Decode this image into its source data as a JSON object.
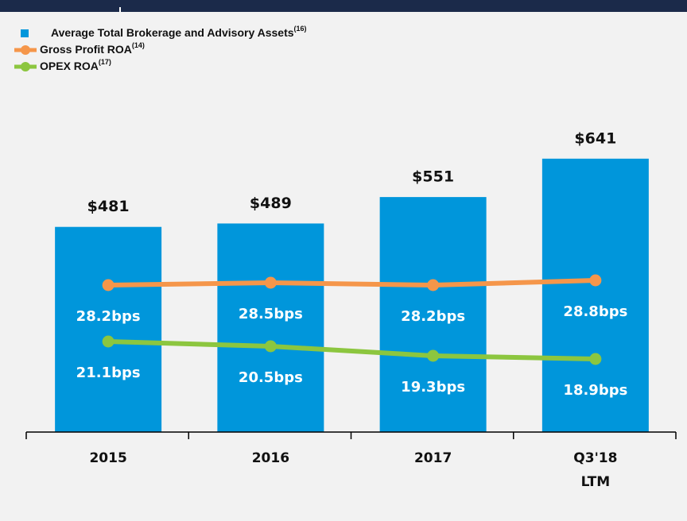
{
  "chart_data": {
    "type": "bar",
    "categories": [
      "2015",
      "2016",
      "2017",
      "Q3'18 LTM"
    ],
    "ylim": [
      0,
      1000
    ],
    "y2lim": [
      9.7,
      63.4
    ],
    "series": [
      {
        "name": "Average Total Brokerage and Advisory Assets",
        "footnote": "(16)",
        "type": "bar",
        "color": "#0096db",
        "values": [
          481,
          489,
          551,
          641
        ],
        "value_labels": [
          "$481",
          "$489",
          "$551",
          "$641"
        ]
      },
      {
        "name": "Gross Profit ROA",
        "footnote": "(14)",
        "type": "line",
        "axis": "y2",
        "color": "#f5964a",
        "values": [
          28.2,
          28.5,
          28.2,
          28.8
        ],
        "value_labels": [
          "28.2bps",
          "28.5bps",
          "28.2bps",
          "28.8bps"
        ]
      },
      {
        "name": "OPEX ROA",
        "footnote": "(17)",
        "type": "line",
        "axis": "y2",
        "color": "#8cc63f",
        "values": [
          21.1,
          20.5,
          19.3,
          18.9
        ],
        "value_labels": [
          "21.1bps",
          "20.5bps",
          "19.3bps",
          "18.9bps"
        ]
      }
    ]
  }
}
